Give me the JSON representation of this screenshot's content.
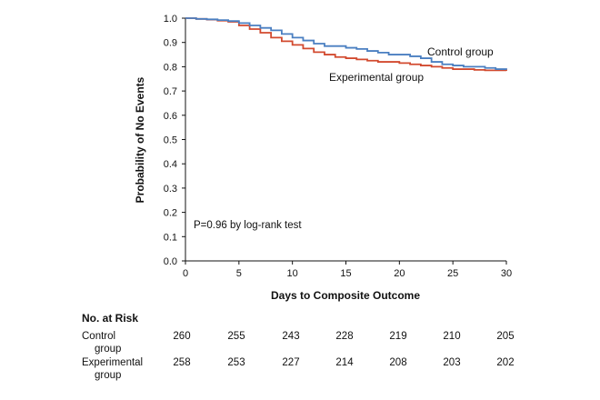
{
  "chart_data": {
    "type": "line",
    "title": "",
    "xlabel": "Days to Composite Outcome",
    "ylabel": "Probability of No Events",
    "xlim": [
      0,
      30
    ],
    "ylim": [
      0.0,
      1.0
    ],
    "x_ticks": [
      0,
      5,
      10,
      15,
      20,
      25,
      30
    ],
    "x_tick_labels": [
      "0",
      "5",
      "10",
      "15",
      "20",
      "25",
      "30"
    ],
    "y_ticks": [
      0.0,
      0.1,
      0.2,
      0.3,
      0.4,
      0.5,
      0.6,
      0.7,
      0.8,
      0.9,
      1.0
    ],
    "y_tick_labels": [
      "0.0",
      "0.1",
      "0.2",
      "0.3",
      "0.4",
      "0.5",
      "0.6",
      "0.7",
      "0.8",
      "0.9",
      "1.0"
    ],
    "grid": false,
    "annotation": "P=0.96 by log-rank test",
    "series": [
      {
        "name": "Control group",
        "color": "#4a7fc1",
        "step_points": [
          [
            0,
            1.0
          ],
          [
            1,
            0.997
          ],
          [
            2,
            0.995
          ],
          [
            3,
            0.992
          ],
          [
            4,
            0.988
          ],
          [
            5,
            0.98
          ],
          [
            6,
            0.97
          ],
          [
            7,
            0.96
          ],
          [
            8,
            0.95
          ],
          [
            9,
            0.935
          ],
          [
            10,
            0.92
          ],
          [
            11,
            0.908
          ],
          [
            12,
            0.895
          ],
          [
            13,
            0.885
          ],
          [
            15,
            0.878
          ],
          [
            16,
            0.873
          ],
          [
            17,
            0.865
          ],
          [
            18,
            0.858
          ],
          [
            19,
            0.85
          ],
          [
            21,
            0.843
          ],
          [
            22,
            0.835
          ],
          [
            23,
            0.82
          ],
          [
            24,
            0.81
          ],
          [
            25,
            0.805
          ],
          [
            26,
            0.8
          ],
          [
            28,
            0.795
          ],
          [
            29,
            0.79
          ],
          [
            30,
            0.788
          ]
        ]
      },
      {
        "name": "Experimental group",
        "color": "#d24a2f",
        "step_points": [
          [
            0,
            1.0
          ],
          [
            1,
            0.997
          ],
          [
            2,
            0.994
          ],
          [
            3,
            0.99
          ],
          [
            4,
            0.985
          ],
          [
            5,
            0.97
          ],
          [
            6,
            0.955
          ],
          [
            7,
            0.94
          ],
          [
            8,
            0.92
          ],
          [
            9,
            0.905
          ],
          [
            10,
            0.89
          ],
          [
            11,
            0.875
          ],
          [
            12,
            0.86
          ],
          [
            13,
            0.85
          ],
          [
            14,
            0.84
          ],
          [
            15,
            0.835
          ],
          [
            16,
            0.83
          ],
          [
            17,
            0.825
          ],
          [
            18,
            0.82
          ],
          [
            20,
            0.815
          ],
          [
            21,
            0.81
          ],
          [
            22,
            0.805
          ],
          [
            23,
            0.8
          ],
          [
            24,
            0.795
          ],
          [
            25,
            0.79
          ],
          [
            27,
            0.787
          ],
          [
            28,
            0.785
          ],
          [
            30,
            0.783
          ]
        ]
      }
    ],
    "at_risk": {
      "title": "No. at Risk",
      "times": [
        0,
        5,
        10,
        15,
        20,
        25,
        30
      ],
      "groups": [
        {
          "label_line1": "Control",
          "label_line2": "group",
          "counts": [
            260,
            255,
            243,
            228,
            219,
            210,
            205
          ]
        },
        {
          "label_line1": "Experimental",
          "label_line2": "group",
          "counts": [
            258,
            253,
            227,
            214,
            208,
            203,
            202
          ]
        }
      ]
    }
  }
}
